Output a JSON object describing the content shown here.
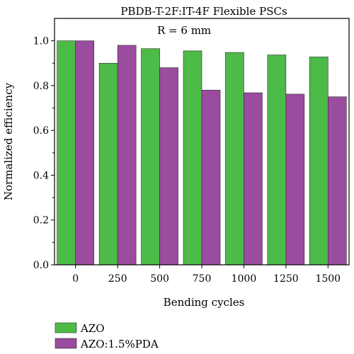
{
  "chart_data": {
    "type": "bar",
    "title": "PBDB-T-2F:IT-4F Flexible PSCs",
    "annotation": "R = 6 mm",
    "xlabel": "Bending cycles",
    "ylabel": "Normalized efficiency",
    "categories": [
      "0",
      "250",
      "500",
      "750",
      "1000",
      "1250",
      "1500"
    ],
    "ylim": [
      0,
      1.1
    ],
    "yticks": [
      "0.0",
      "0.2",
      "0.4",
      "0.6",
      "0.8",
      "1.0"
    ],
    "grid": false,
    "legend_position": "bottom-left",
    "series": [
      {
        "name": "AZO",
        "color": "#4cbb47",
        "values": [
          1.0,
          0.9,
          0.965,
          0.955,
          0.948,
          0.937,
          0.928
        ]
      },
      {
        "name": "AZO:1.5%PDA",
        "color": "#9a4c9e",
        "values": [
          1.0,
          0.98,
          0.88,
          0.78,
          0.768,
          0.762,
          0.75
        ]
      }
    ]
  }
}
